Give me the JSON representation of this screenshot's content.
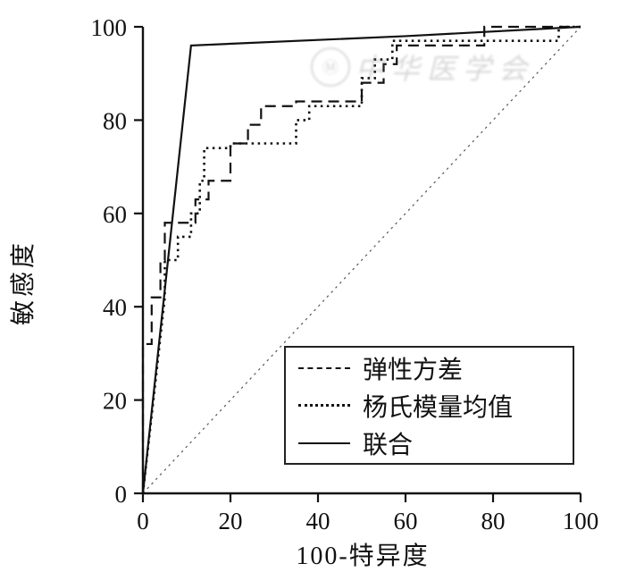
{
  "chart_data": {
    "type": "line",
    "title": "",
    "xlabel": "100-特异度",
    "ylabel": "敏感度",
    "xlim": [
      0,
      100
    ],
    "ylim": [
      0,
      100
    ],
    "xticks": [
      0,
      20,
      40,
      60,
      80,
      100
    ],
    "yticks": [
      0,
      20,
      40,
      60,
      80,
      100
    ],
    "grid": false,
    "legend_position": "inside-bottom-right",
    "series": [
      {
        "name": "弹性方差",
        "style": "dashed",
        "points": [
          [
            0,
            0
          ],
          [
            0,
            32
          ],
          [
            2,
            32
          ],
          [
            2,
            42
          ],
          [
            4,
            42
          ],
          [
            4,
            50
          ],
          [
            5,
            50
          ],
          [
            5,
            58
          ],
          [
            12,
            58
          ],
          [
            12,
            63
          ],
          [
            15,
            63
          ],
          [
            15,
            67
          ],
          [
            20,
            67
          ],
          [
            20,
            75
          ],
          [
            24,
            75
          ],
          [
            24,
            79
          ],
          [
            27,
            79
          ],
          [
            27,
            83
          ],
          [
            35,
            83
          ],
          [
            35,
            84
          ],
          [
            50,
            84
          ],
          [
            50,
            88
          ],
          [
            55,
            88
          ],
          [
            55,
            92
          ],
          [
            58,
            92
          ],
          [
            58,
            96
          ],
          [
            78,
            96
          ],
          [
            78,
            100
          ],
          [
            100,
            100
          ]
        ]
      },
      {
        "name": "杨氏模量均值",
        "style": "dotted",
        "points": [
          [
            0,
            0
          ],
          [
            3,
            25
          ],
          [
            5,
            42
          ],
          [
            5,
            50
          ],
          [
            8,
            50
          ],
          [
            8,
            55
          ],
          [
            11,
            55
          ],
          [
            11,
            60
          ],
          [
            13,
            60
          ],
          [
            13,
            67
          ],
          [
            14,
            67
          ],
          [
            14,
            74
          ],
          [
            20,
            74
          ],
          [
            20,
            75
          ],
          [
            35,
            75
          ],
          [
            35,
            80
          ],
          [
            38,
            80
          ],
          [
            38,
            83
          ],
          [
            50,
            83
          ],
          [
            50,
            89
          ],
          [
            53,
            89
          ],
          [
            53,
            93
          ],
          [
            57,
            93
          ],
          [
            57,
            97
          ],
          [
            95,
            97
          ],
          [
            95,
            100
          ],
          [
            100,
            100
          ]
        ]
      },
      {
        "name": "联合",
        "style": "solid",
        "points": [
          [
            0,
            0
          ],
          [
            11,
            96
          ],
          [
            60,
            98
          ],
          [
            100,
            100
          ]
        ]
      }
    ],
    "reference_line": {
      "style": "dotted",
      "points": [
        [
          0,
          0
        ],
        [
          100,
          100
        ]
      ]
    }
  },
  "watermark": {
    "seal_glyph": "Ⓜ",
    "text": "中华医学会"
  }
}
